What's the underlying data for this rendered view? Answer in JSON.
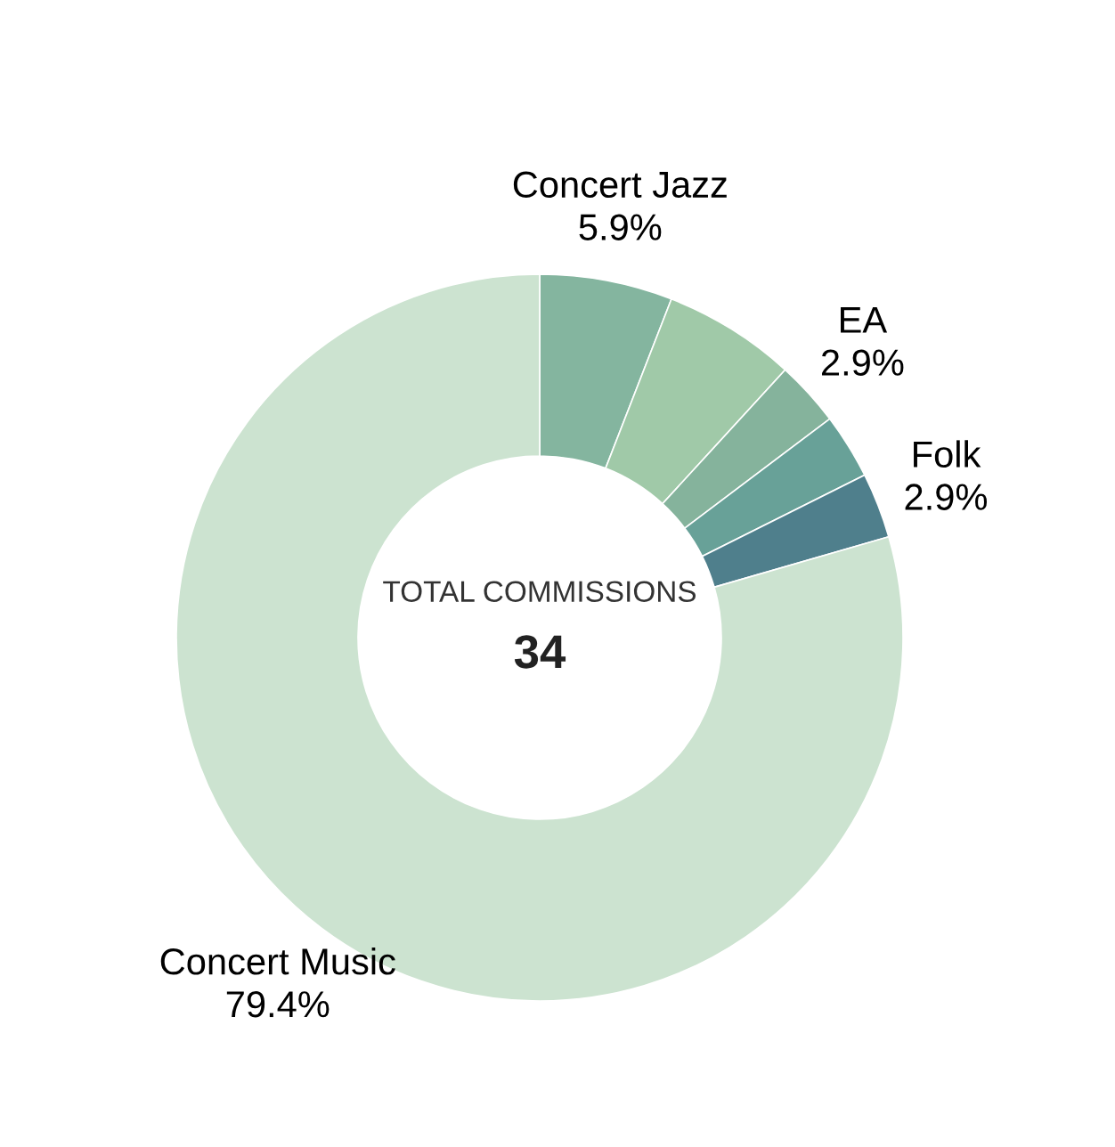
{
  "chart_data": {
    "type": "donut",
    "categories": [
      "Concert Jazz",
      null,
      "EA",
      null,
      "Folk",
      "Concert Music"
    ],
    "values": [
      5.9,
      5.9,
      2.9,
      2.9,
      2.9,
      79.4
    ],
    "colors": [
      "#84b59f",
      "#a0c9a8",
      "#85b39c",
      "#68a198",
      "#4f7f8c",
      "#cce3d0"
    ],
    "value_labels": [
      "5.9%",
      null,
      "2.9%",
      null,
      "2.9%",
      "79.4%"
    ],
    "annotations": [
      "TOTAL COMMISSIONS",
      "34"
    ],
    "legend": false
  }
}
